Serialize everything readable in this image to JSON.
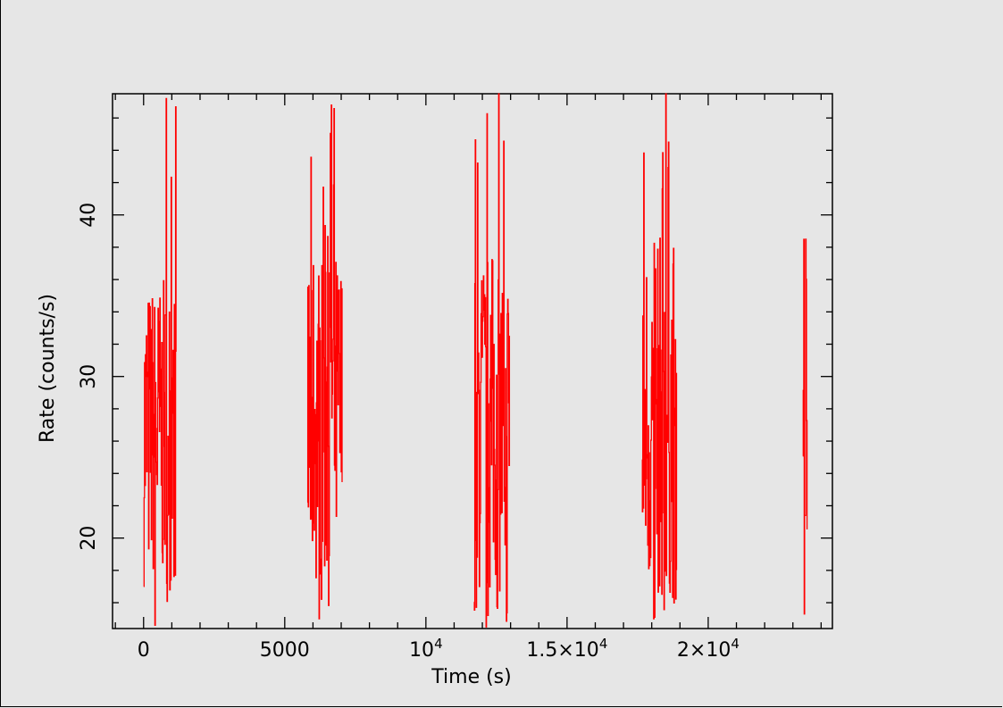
{
  "chart_data": {
    "type": "line",
    "title": "",
    "xlabel": "Time (s)",
    "ylabel": "Rate (counts/s)",
    "xlim": [
      -1100,
      24400
    ],
    "ylim": [
      14.4,
      47.5
    ],
    "x_ticks": [
      {
        "value": 0,
        "label": "0"
      },
      {
        "value": 5000,
        "label": "5000"
      },
      {
        "value": 10000,
        "label": "10",
        "sup": "4"
      },
      {
        "value": 15000,
        "label": "1.5×10",
        "sup": "4"
      },
      {
        "value": 20000,
        "label": "2×10",
        "sup": "4"
      }
    ],
    "y_ticks": [
      {
        "value": 20,
        "label": "20"
      },
      {
        "value": 30,
        "label": "30"
      },
      {
        "value": 40,
        "label": "40"
      }
    ],
    "series": [
      {
        "color": "#ff0000",
        "segments": [
          {
            "x_start": 0,
            "x_end": 1150,
            "y_min": 14.6,
            "y_max": 47.2,
            "typical_low": 17,
            "typical_high": 36
          },
          {
            "x_start": 5800,
            "x_end": 7030,
            "y_min": 15.0,
            "y_max": 46.8,
            "typical_low": 17,
            "typical_high": 38
          },
          {
            "x_start": 11700,
            "x_end": 12960,
            "y_min": 14.5,
            "y_max": 47.5,
            "typical_low": 16,
            "typical_high": 38
          },
          {
            "x_start": 17650,
            "x_end": 18880,
            "y_min": 15.0,
            "y_max": 47.5,
            "typical_low": 16,
            "typical_high": 39
          },
          {
            "x_start": 23350,
            "x_end": 23500,
            "y_min": 15.3,
            "y_max": 38.5,
            "typical_low": 19,
            "typical_high": 34
          }
        ]
      }
    ]
  }
}
